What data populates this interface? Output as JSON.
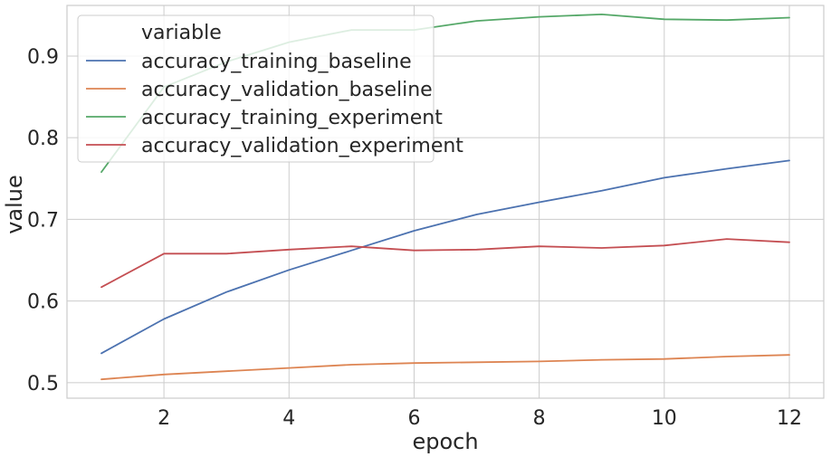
{
  "chart_data": {
    "type": "line",
    "title": "",
    "xlabel": "epoch",
    "ylabel": "value",
    "xlim": [
      0.45,
      12.55
    ],
    "ylim": [
      0.481,
      0.962
    ],
    "xticks": [
      2,
      4,
      6,
      8,
      10,
      12
    ],
    "xtick_labels": [
      "2",
      "4",
      "6",
      "8",
      "10",
      "12"
    ],
    "yticks": [
      0.5,
      0.6,
      0.7,
      0.8,
      0.9
    ],
    "ytick_labels": [
      "0.5",
      "0.6",
      "0.7",
      "0.8",
      "0.9"
    ],
    "grid": true,
    "legend": {
      "title": "variable",
      "placement": "top-left"
    },
    "x": [
      1,
      2,
      3,
      4,
      5,
      6,
      7,
      8,
      9,
      10,
      11,
      12
    ],
    "series": [
      {
        "name": "accuracy_training_baseline",
        "color": "#4c72b0",
        "values": [
          0.536,
          0.578,
          0.611,
          0.638,
          0.662,
          0.686,
          0.706,
          0.721,
          0.735,
          0.751,
          0.762,
          0.772
        ]
      },
      {
        "name": "accuracy_validation_baseline",
        "color": "#dd8452",
        "values": [
          0.504,
          0.51,
          0.514,
          0.518,
          0.522,
          0.524,
          0.525,
          0.526,
          0.528,
          0.529,
          0.532,
          0.534
        ]
      },
      {
        "name": "accuracy_training_experiment",
        "color": "#55a868",
        "values": [
          0.758,
          0.862,
          0.893,
          0.917,
          0.932,
          0.932,
          0.943,
          0.948,
          0.951,
          0.945,
          0.944,
          0.947
        ]
      },
      {
        "name": "accuracy_validation_experiment",
        "color": "#c44e52",
        "values": [
          0.617,
          0.658,
          0.658,
          0.663,
          0.667,
          0.662,
          0.663,
          0.667,
          0.665,
          0.668,
          0.676,
          0.672
        ]
      }
    ]
  }
}
